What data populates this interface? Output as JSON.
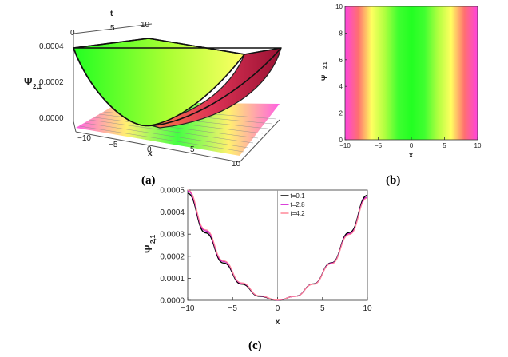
{
  "captions": {
    "a": "(a)",
    "b": "(b)",
    "c": "(c)"
  },
  "panel_a": {
    "ylabel": "Ψ",
    "ylabel_sub": "2,1",
    "xlabel": "x",
    "tlabel": "t",
    "z_ticks": [
      "0.0000",
      "0.0002",
      "0.0004"
    ],
    "x_ticks": [
      "−10",
      "−5",
      "0",
      "5",
      "10"
    ],
    "t_ticks": [
      "0",
      "5",
      "10"
    ]
  },
  "panel_b": {
    "ylabel": "Ψ",
    "ylabel_sub": "2,1",
    "xlabel": "x",
    "x_ticks": [
      "−10",
      "−5",
      "0",
      "5",
      "10"
    ],
    "y_ticks": [
      "0",
      "2",
      "4",
      "6",
      "8",
      "10"
    ]
  },
  "chart_data": [
    {
      "type": "surface",
      "panel": "a",
      "function": "psi_2_1(x,t) ≈ 4.8e-6 x^2",
      "x_range": [
        -10,
        10
      ],
      "t_range": [
        0,
        10
      ],
      "z_range": [
        0,
        0.0005
      ],
      "colors": [
        "#ff33cc",
        "#ffff55",
        "#33ff33"
      ]
    },
    {
      "type": "heatmap",
      "panel": "b",
      "x_range": [
        -10,
        10
      ],
      "y_range": [
        0,
        10
      ],
      "color_stops": [
        {
          "x": -10,
          "color": "#ff44dd"
        },
        {
          "x": -8,
          "color": "#ff7070"
        },
        {
          "x": -6,
          "color": "#ffff60"
        },
        {
          "x": -4,
          "color": "#b0ff40"
        },
        {
          "x": -2,
          "color": "#40ff30"
        },
        {
          "x": 0,
          "color": "#22ff22"
        },
        {
          "x": 2,
          "color": "#40ff30"
        },
        {
          "x": 4,
          "color": "#b0ff40"
        },
        {
          "x": 6,
          "color": "#ffff60"
        },
        {
          "x": 8,
          "color": "#ff7070"
        },
        {
          "x": 10,
          "color": "#ff44dd"
        }
      ]
    },
    {
      "type": "line",
      "panel": "c",
      "xlabel": "x",
      "ylabel": "Ψ",
      "ylabel_sub": "2,1",
      "xlim": [
        -10,
        10
      ],
      "ylim": [
        0,
        0.0005
      ],
      "x_ticks": [
        -10,
        -5,
        0,
        5,
        10
      ],
      "y_ticks": [
        "0.0000",
        "0.0001",
        "0.0002",
        "0.0003",
        "0.0004",
        "0.0005"
      ],
      "x": [
        -10,
        -8,
        -6,
        -4,
        -2,
        0,
        2,
        4,
        6,
        8,
        10
      ],
      "series": [
        {
          "name": "t=0.1",
          "color": "#000000",
          "values": [
            0.000485,
            0.000306,
            0.000169,
            7.36e-05,
            1.83e-05,
            2e-07,
            1.87e-05,
            7.44e-05,
            0.00017,
            0.000308,
            0.000476
          ]
        },
        {
          "name": "t=2.8",
          "color": "#cc00cc",
          "values": [
            0.000495,
            0.000315,
            0.000176,
            7.76e-05,
            1.98e-05,
            1e-06,
            1.82e-05,
            7.34e-05,
            0.000168,
            0.000302,
            0.000468
          ]
        },
        {
          "name": "t=4.2",
          "color": "#ff8899",
          "values": [
            0.0005,
            0.00032,
            0.000179,
            7.92e-05,
            2.06e-05,
            1.4e-06,
            1.79e-05,
            7.28e-05,
            0.000166,
            0.000299,
            0.000464
          ]
        }
      ],
      "legend_position": "top-center"
    }
  ]
}
